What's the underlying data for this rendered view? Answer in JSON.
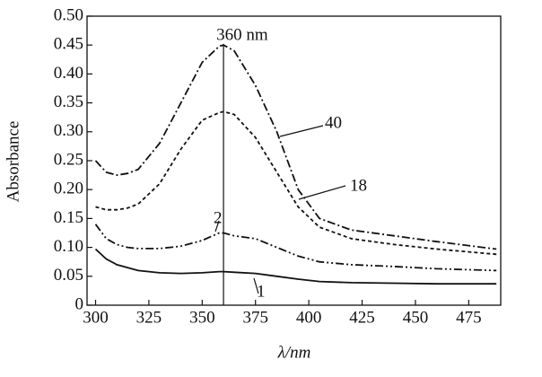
{
  "chart_data": {
    "type": "line",
    "x_label": "λ/nm",
    "y_label": "Absorbance",
    "x": [
      300,
      305,
      310,
      315,
      320,
      330,
      340,
      350,
      358,
      360,
      365,
      375,
      385,
      395,
      405,
      420,
      440,
      460,
      488
    ],
    "series": [
      {
        "name": "40",
        "color": "#111111",
        "values": [
          0.25,
          0.23,
          0.225,
          0.228,
          0.235,
          0.28,
          0.35,
          0.42,
          0.448,
          0.45,
          0.44,
          0.38,
          0.3,
          0.2,
          0.15,
          0.13,
          0.12,
          0.11,
          0.097
        ]
      },
      {
        "name": "18",
        "color": "#111111",
        "values": [
          0.17,
          0.165,
          0.165,
          0.168,
          0.175,
          0.21,
          0.27,
          0.32,
          0.333,
          0.335,
          0.33,
          0.29,
          0.23,
          0.17,
          0.135,
          0.115,
          0.105,
          0.097,
          0.088
        ]
      },
      {
        "name": "2",
        "color": "#111111",
        "values": [
          0.14,
          0.115,
          0.105,
          0.1,
          0.098,
          0.098,
          0.102,
          0.112,
          0.125,
          0.125,
          0.12,
          0.115,
          0.1,
          0.085,
          0.075,
          0.07,
          0.067,
          0.063,
          0.06
        ]
      },
      {
        "name": "1",
        "color": "#111111",
        "values": [
          0.097,
          0.08,
          0.07,
          0.065,
          0.06,
          0.056,
          0.055,
          0.056,
          0.058,
          0.058,
          0.057,
          0.055,
          0.05,
          0.045,
          0.041,
          0.039,
          0.038,
          0.037,
          0.037
        ]
      }
    ],
    "vline": {
      "x": 360,
      "label": "360 nm"
    },
    "xlim": [
      296,
      490
    ],
    "xticks": [
      300,
      325,
      350,
      375,
      400,
      425,
      450,
      475
    ],
    "ylim": [
      0,
      0.5
    ],
    "yticks": [
      0,
      0.05,
      {
        "value": 0.1,
        "label": "0.10"
      },
      0.15,
      {
        "value": 0.2,
        "label": "0.20"
      },
      0.25,
      {
        "value": 0.3,
        "label": "0.30"
      },
      0.35,
      {
        "value": 0.4,
        "label": "0.40"
      },
      0.45,
      {
        "value": 0.5,
        "label": "0.50"
      }
    ],
    "grid": false
  }
}
